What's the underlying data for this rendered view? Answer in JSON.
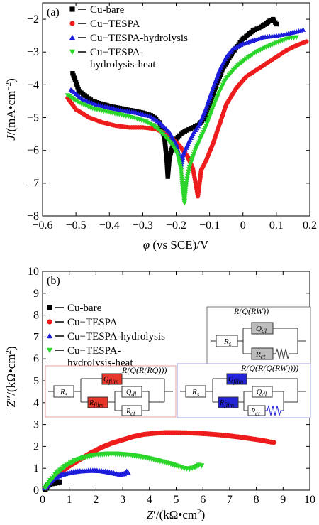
{
  "chart_data": [
    {
      "panel_label": "(a)",
      "type": "line",
      "xlabel_parts": [
        "φ",
        " (vs SCE)/V"
      ],
      "ylabel_parts": [
        "J",
        "/(mA•cm",
        "−2",
        ")"
      ],
      "xlim": [
        -0.6,
        0.2
      ],
      "ylim": [
        -8,
        -1.5
      ],
      "xticks": [
        "−0.6",
        "−0.5",
        "−0.4",
        "−0.3",
        "−0.2",
        "−0.1",
        "0",
        "0.1",
        "0.2"
      ],
      "xtick_values": [
        -0.6,
        -0.5,
        -0.4,
        -0.3,
        -0.2,
        -0.1,
        0,
        0.1,
        0.2
      ],
      "yticks": [
        "−8",
        "−7",
        "−6",
        "−5",
        "−4",
        "−3",
        "−2"
      ],
      "ytick_values": [
        -8,
        -7,
        -6,
        -5,
        -4,
        -3,
        -2
      ],
      "legend_position": "top-left",
      "series": [
        {
          "name": "Cu-bare",
          "color": "#000000",
          "marker": "square",
          "points": [
            [
              -0.51,
              -3.65
            ],
            [
              -0.49,
              -4.2
            ],
            [
              -0.45,
              -4.5
            ],
            [
              -0.4,
              -4.65
            ],
            [
              -0.35,
              -4.75
            ],
            [
              -0.3,
              -4.85
            ],
            [
              -0.27,
              -4.95
            ],
            [
              -0.25,
              -5.15
            ],
            [
              -0.235,
              -5.6
            ],
            [
              -0.228,
              -6.3
            ],
            [
              -0.225,
              -6.8
            ],
            [
              -0.22,
              -6.2
            ],
            [
              -0.205,
              -5.7
            ],
            [
              -0.18,
              -5.45
            ],
            [
              -0.15,
              -5.3
            ],
            [
              -0.13,
              -5.2
            ],
            [
              -0.115,
              -5.0
            ],
            [
              -0.1,
              -4.6
            ],
            [
              -0.08,
              -4.0
            ],
            [
              -0.06,
              -3.5
            ],
            [
              -0.03,
              -3.0
            ],
            [
              0.0,
              -2.6
            ],
            [
              0.03,
              -2.35
            ],
            [
              0.06,
              -2.2
            ],
            [
              0.08,
              -2.05
            ],
            [
              0.09,
              -2.0
            ],
            [
              0.1,
              -2.15
            ]
          ]
        },
        {
          "name": "Cu−TESPA",
          "color": "#ee1c1c",
          "marker": "circle",
          "points": [
            [
              -0.525,
              -4.4
            ],
            [
              -0.5,
              -4.75
            ],
            [
              -0.46,
              -5.0
            ],
            [
              -0.42,
              -5.15
            ],
            [
              -0.38,
              -5.25
            ],
            [
              -0.34,
              -5.3
            ],
            [
              -0.3,
              -5.3
            ],
            [
              -0.26,
              -5.35
            ],
            [
              -0.22,
              -5.55
            ],
            [
              -0.19,
              -5.85
            ],
            [
              -0.165,
              -6.2
            ],
            [
              -0.15,
              -6.55
            ],
            [
              -0.14,
              -7.1
            ],
            [
              -0.135,
              -7.4
            ],
            [
              -0.13,
              -7.0
            ],
            [
              -0.125,
              -6.6
            ],
            [
              -0.11,
              -6.3
            ],
            [
              -0.09,
              -5.8
            ],
            [
              -0.07,
              -5.2
            ],
            [
              -0.05,
              -4.6
            ],
            [
              -0.02,
              -4.1
            ],
            [
              0.01,
              -3.75
            ],
            [
              0.04,
              -3.55
            ],
            [
              0.07,
              -3.35
            ],
            [
              0.1,
              -3.15
            ],
            [
              0.13,
              -2.95
            ],
            [
              0.16,
              -2.8
            ],
            [
              0.19,
              -2.68
            ]
          ]
        },
        {
          "name": "Cu−TESPA-hydrolysis",
          "color": "#1c1cdc",
          "marker": "triangle-up",
          "points": [
            [
              -0.515,
              -4.15
            ],
            [
              -0.48,
              -4.45
            ],
            [
              -0.44,
              -4.6
            ],
            [
              -0.4,
              -4.7
            ],
            [
              -0.36,
              -4.78
            ],
            [
              -0.32,
              -4.85
            ],
            [
              -0.28,
              -4.95
            ],
            [
              -0.25,
              -5.15
            ],
            [
              -0.22,
              -5.45
            ],
            [
              -0.2,
              -5.8
            ],
            [
              -0.19,
              -6.2
            ],
            [
              -0.185,
              -6.5
            ],
            [
              -0.18,
              -6.15
            ],
            [
              -0.165,
              -5.8
            ],
            [
              -0.15,
              -5.5
            ],
            [
              -0.13,
              -5.2
            ],
            [
              -0.11,
              -4.7
            ],
            [
              -0.09,
              -4.1
            ],
            [
              -0.07,
              -3.55
            ],
            [
              -0.05,
              -3.15
            ],
            [
              -0.03,
              -2.9
            ],
            [
              0.0,
              -2.75
            ],
            [
              0.03,
              -2.65
            ],
            [
              0.06,
              -2.55
            ],
            [
              0.1,
              -2.5
            ],
            [
              0.13,
              -2.45
            ],
            [
              0.16,
              -2.38
            ],
            [
              0.18,
              -2.32
            ]
          ]
        },
        {
          "name": "Cu−TESPA-hydrolysis-heat",
          "color": "#2bd62b",
          "marker": "triangle-down",
          "points": [
            [
              -0.525,
              -4.32
            ],
            [
              -0.49,
              -4.55
            ],
            [
              -0.45,
              -4.72
            ],
            [
              -0.41,
              -4.82
            ],
            [
              -0.37,
              -4.9
            ],
            [
              -0.33,
              -5.0
            ],
            [
              -0.29,
              -5.12
            ],
            [
              -0.26,
              -5.3
            ],
            [
              -0.235,
              -5.55
            ],
            [
              -0.21,
              -5.85
            ],
            [
              -0.195,
              -6.15
            ],
            [
              -0.185,
              -6.6
            ],
            [
              -0.18,
              -7.2
            ],
            [
              -0.175,
              -7.6
            ],
            [
              -0.17,
              -7.0
            ],
            [
              -0.16,
              -6.5
            ],
            [
              -0.145,
              -6.05
            ],
            [
              -0.13,
              -5.7
            ],
            [
              -0.11,
              -5.25
            ],
            [
              -0.09,
              -4.7
            ],
            [
              -0.07,
              -4.2
            ],
            [
              -0.05,
              -3.8
            ],
            [
              -0.02,
              -3.45
            ],
            [
              0.01,
              -3.2
            ],
            [
              0.04,
              -3.0
            ],
            [
              0.07,
              -2.85
            ],
            [
              0.1,
              -2.72
            ],
            [
              0.13,
              -2.6
            ],
            [
              0.16,
              -2.55
            ]
          ]
        }
      ]
    },
    {
      "panel_label": "(b)",
      "type": "scatter",
      "xlabel_parts": [
        "Z",
        "′/(kΩ•cm",
        "2",
        ")"
      ],
      "ylabel_parts": [
        "−Z",
        "″/(kΩ•cm",
        "2",
        ")"
      ],
      "xlim": [
        0,
        10
      ],
      "ylim": [
        0,
        10
      ],
      "xticks": [
        "0",
        "1",
        "2",
        "3",
        "4",
        "5",
        "6",
        "7",
        "8",
        "9",
        "10"
      ],
      "xtick_values": [
        0,
        1,
        2,
        3,
        4,
        5,
        6,
        7,
        8,
        9,
        10
      ],
      "yticks": [
        "0",
        "1",
        "2",
        "3",
        "4",
        "5",
        "6",
        "7",
        "8",
        "9",
        "10"
      ],
      "ytick_values": [
        0,
        1,
        2,
        3,
        4,
        5,
        6,
        7,
        8,
        9,
        10
      ],
      "legend_position": "top-left",
      "series": [
        {
          "name": "Cu-bare",
          "color": "#000000",
          "marker": "square",
          "points": [
            [
              0.1,
              0.03
            ],
            [
              0.15,
              0.12
            ],
            [
              0.2,
              0.2
            ],
            [
              0.27,
              0.26
            ],
            [
              0.35,
              0.3
            ],
            [
              0.45,
              0.32
            ],
            [
              0.55,
              0.34
            ],
            [
              0.62,
              0.38
            ]
          ]
        },
        {
          "name": "Cu−TESPA",
          "color": "#ee1c1c",
          "marker": "circle",
          "points": [
            [
              0.12,
              0.1
            ],
            [
              0.3,
              0.4
            ],
            [
              0.6,
              0.75
            ],
            [
              1.0,
              1.1
            ],
            [
              1.4,
              1.4
            ],
            [
              1.8,
              1.7
            ],
            [
              2.2,
              1.95
            ],
            [
              2.6,
              2.15
            ],
            [
              3.0,
              2.3
            ],
            [
              3.4,
              2.45
            ],
            [
              3.8,
              2.55
            ],
            [
              4.2,
              2.6
            ],
            [
              4.6,
              2.63
            ],
            [
              5.0,
              2.63
            ],
            [
              5.4,
              2.62
            ],
            [
              5.8,
              2.6
            ],
            [
              6.2,
              2.57
            ],
            [
              6.6,
              2.53
            ],
            [
              7.0,
              2.48
            ],
            [
              7.4,
              2.42
            ],
            [
              7.8,
              2.35
            ],
            [
              8.2,
              2.28
            ],
            [
              8.45,
              2.22
            ],
            [
              8.65,
              2.18
            ]
          ]
        },
        {
          "name": "Cu−TESPA-hydrolysis",
          "color": "#1c1cdc",
          "marker": "triangle-up",
          "points": [
            [
              0.1,
              0.1
            ],
            [
              0.25,
              0.35
            ],
            [
              0.45,
              0.55
            ],
            [
              0.7,
              0.7
            ],
            [
              1.0,
              0.8
            ],
            [
              1.4,
              0.87
            ],
            [
              1.8,
              0.9
            ],
            [
              2.2,
              0.88
            ],
            [
              2.5,
              0.82
            ],
            [
              2.75,
              0.76
            ],
            [
              2.9,
              0.72
            ],
            [
              3.05,
              0.75
            ],
            [
              3.15,
              0.85
            ],
            [
              3.2,
              0.8
            ]
          ]
        },
        {
          "name": "Cu−TESPA-hydrolysis-heat",
          "color": "#2bd62b",
          "marker": "triangle-down",
          "points": [
            [
              0.1,
              0.1
            ],
            [
              0.3,
              0.45
            ],
            [
              0.55,
              0.8
            ],
            [
              0.85,
              1.1
            ],
            [
              1.2,
              1.35
            ],
            [
              1.6,
              1.52
            ],
            [
              2.0,
              1.62
            ],
            [
              2.4,
              1.66
            ],
            [
              2.8,
              1.66
            ],
            [
              3.2,
              1.62
            ],
            [
              3.6,
              1.55
            ],
            [
              4.0,
              1.45
            ],
            [
              4.4,
              1.33
            ],
            [
              4.8,
              1.2
            ],
            [
              5.1,
              1.08
            ],
            [
              5.3,
              1.0
            ],
            [
              5.5,
              0.98
            ],
            [
              5.7,
              1.05
            ],
            [
              5.85,
              1.15
            ],
            [
              5.95,
              1.12
            ]
          ]
        }
      ],
      "circuits": [
        {
          "title_prefix": "R(Q(",
          "title_italic": "RW",
          "title_suffix": "))",
          "rs": "R",
          "rs_sub": "s",
          "q1": "Q",
          "q1_sub": "dl",
          "r2": "R",
          "r2_sub": "ct",
          "highlight": "#bdbdbd"
        },
        {
          "title_prefix": "R(Q(R(",
          "title_italic": "RQ",
          "title_suffix": ")))",
          "rs": "R",
          "rs_sub": "s",
          "qf": "Q",
          "qf_sub": "film",
          "rf": "R",
          "rf_sub": "film",
          "q1": "Q",
          "q1_sub": "dl",
          "r2": "R",
          "r2_sub": "ct",
          "highlight": "#e8362b"
        },
        {
          "title_prefix": "R(Q(R(Q(",
          "title_italic": "RW",
          "title_suffix": "))))",
          "rs": "R",
          "rs_sub": "s",
          "qf": "Q",
          "qf_sub": "film",
          "rf": "R",
          "rf_sub": "film",
          "q1": "Q",
          "q1_sub": "dl",
          "r2": "R",
          "r2_sub": "ct",
          "highlight": "#2424d8"
        }
      ]
    }
  ]
}
